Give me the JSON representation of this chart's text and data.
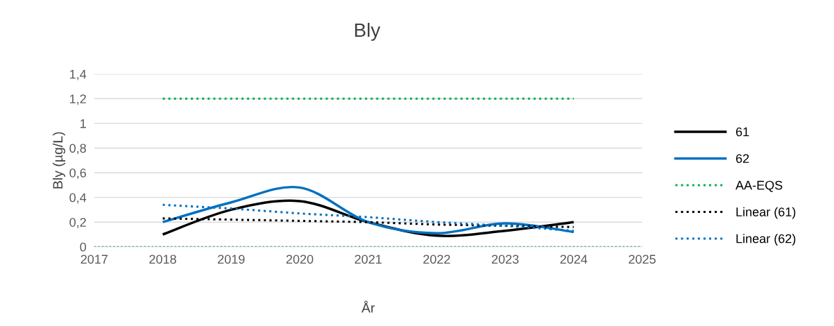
{
  "chart_data": {
    "type": "line",
    "title": "Bly",
    "xlabel": "År",
    "ylabel": "Bly (µg/L)",
    "x": [
      2018,
      2019,
      2020,
      2021,
      2022,
      2023,
      2024
    ],
    "series": [
      {
        "name": "61",
        "color": "#000000",
        "values": [
          0.1,
          0.3,
          0.37,
          0.2,
          0.09,
          0.13,
          0.2
        ],
        "line_style": "solid"
      },
      {
        "name": "62",
        "color": "#0070c0",
        "values": [
          0.2,
          0.36,
          0.48,
          0.2,
          0.11,
          0.19,
          0.12
        ],
        "line_style": "solid"
      },
      {
        "name": "AA-EQS",
        "color": "#00b050",
        "values": [
          1.2,
          1.2,
          1.2,
          1.2,
          1.2,
          1.2,
          1.2
        ],
        "line_style": "dotted"
      },
      {
        "name": "Linear (61)",
        "color": "#000000",
        "values": [
          0.23,
          0.22,
          0.21,
          0.2,
          0.18,
          0.17,
          0.16
        ],
        "line_style": "dotted"
      },
      {
        "name": "Linear (62)",
        "color": "#0070c0",
        "values": [
          0.34,
          0.31,
          0.27,
          0.24,
          0.2,
          0.17,
          0.13
        ],
        "line_style": "dotted"
      }
    ],
    "ref_lines": [
      {
        "axis": "y",
        "value": 0,
        "color": "#00b050",
        "line_style": "dotted"
      }
    ],
    "xlim": [
      2017,
      2025
    ],
    "xticks": [
      2017,
      2018,
      2019,
      2020,
      2021,
      2022,
      2023,
      2024,
      2025
    ],
    "ylim": [
      0,
      1.4
    ],
    "yticks": [
      {
        "value": 0,
        "label": "0"
      },
      {
        "value": 0.2,
        "label": "0,2"
      },
      {
        "value": 0.4,
        "label": "0,4"
      },
      {
        "value": 0.6,
        "label": "0,6"
      },
      {
        "value": 0.8,
        "label": "0,8"
      },
      {
        "value": 1,
        "label": "1"
      },
      {
        "value": 1.2,
        "label": "1,2"
      },
      {
        "value": 1.4,
        "label": "1,4"
      }
    ],
    "grid": "y",
    "legend": "right",
    "marker": "none"
  }
}
